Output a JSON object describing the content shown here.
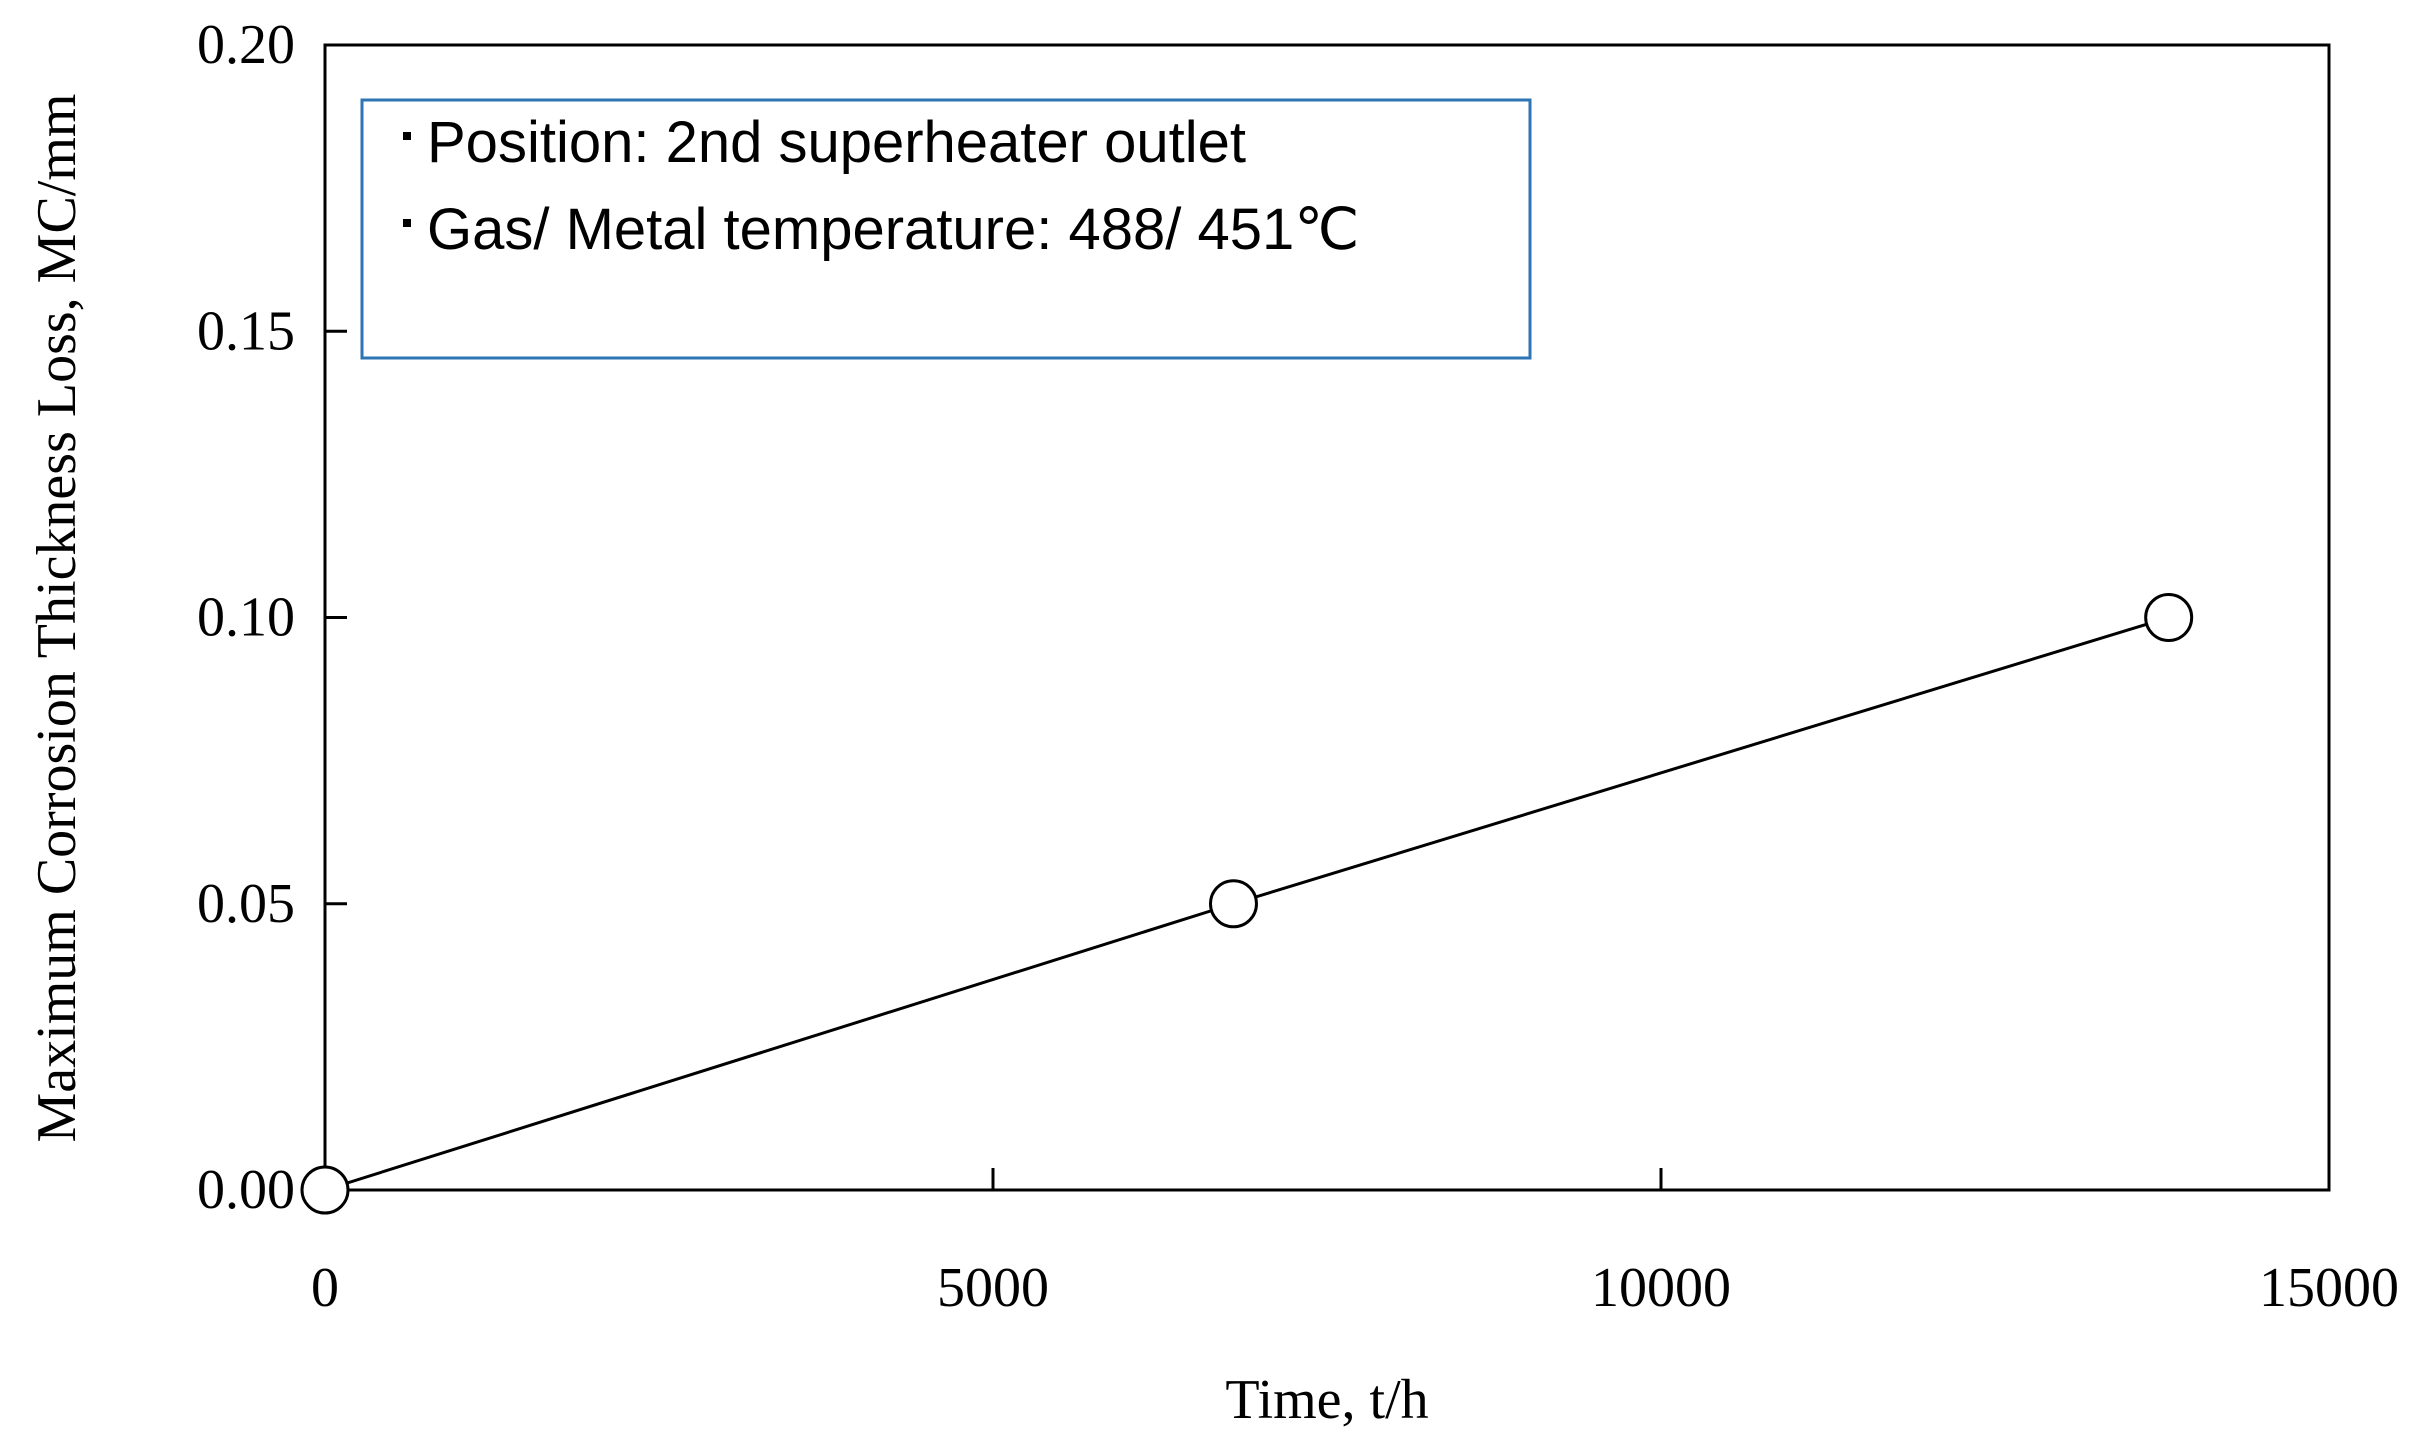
{
  "chart_data": {
    "type": "line",
    "title": "",
    "xlabel": "Time,  t/h",
    "ylabel": "Maximum Corrosion Thickness Loss, MC/mm",
    "xlim": [
      0,
      15000
    ],
    "ylim": [
      0,
      0.2
    ],
    "x_ticks": [
      "0",
      "5000",
      "10000",
      "15000"
    ],
    "y_ticks": [
      "0.00",
      "0.05",
      "0.10",
      "0.15",
      "0.20"
    ],
    "grid": false,
    "legend": "none",
    "series": [
      {
        "x": [
          0,
          6800,
          13800
        ],
        "y": [
          0.0,
          0.05,
          0.1
        ],
        "marker": "open-circle",
        "color": "#000000"
      }
    ],
    "annotation": {
      "lines": [
        "Position: 2nd superheater outlet",
        "Gas/ Metal temperature: 488/ 451℃"
      ],
      "border_color": "#2e75b6"
    }
  }
}
